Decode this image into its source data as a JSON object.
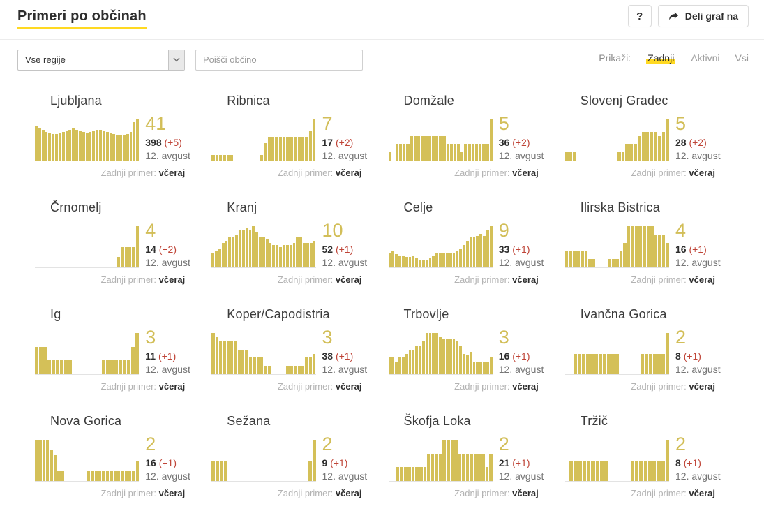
{
  "page": {
    "title": "Primeri po občinah"
  },
  "header": {
    "help_button": "?",
    "share_button": "Deli graf na",
    "share_icon": "share-forward-arrow"
  },
  "filters": {
    "region_select_value": "Vse regije",
    "region_select_icon": "chevron-down-icon",
    "search_placeholder": "Poišči občino",
    "display_label": "Prikaži:",
    "display_options": [
      {
        "label": "Zadnji",
        "active": true
      },
      {
        "label": "Aktivni",
        "active": false
      },
      {
        "label": "Vsi",
        "active": false
      }
    ]
  },
  "card_footer": {
    "label": "Zadnji primer:",
    "value": "včeraj"
  },
  "colors": {
    "accent_yellow": "#ffd922",
    "bar_yellow": "#d4c058",
    "delta_red": "#bf4437",
    "text_dark": "#2e2e2e",
    "text_gray": "#757575"
  },
  "chart_data": {
    "type": "bar",
    "note": "per-municipality daily case sparklines; see municipalities[].bars (relative daily values, last ~30 days ending 12. avgust)"
  },
  "municipalities": [
    {
      "name": "Ljubljana",
      "last": "41",
      "total": "398",
      "delta": "(+5)",
      "date": "12. avgust",
      "bars": [
        8.5,
        8,
        7.5,
        7,
        6.8,
        6.5,
        6.5,
        6.8,
        7,
        7.2,
        7.5,
        7.8,
        7.5,
        7.2,
        7,
        6.8,
        7,
        7.2,
        7.5,
        7.5,
        7.2,
        7,
        6.8,
        6.5,
        6.3,
        6.2,
        6.3,
        6.5,
        7,
        9.3,
        10
      ]
    },
    {
      "name": "Ribnica",
      "last": "7",
      "total": "17",
      "delta": "(+2)",
      "date": "12. avgust",
      "bars": [
        1,
        1,
        1,
        1,
        1,
        1,
        0,
        0,
        0,
        0,
        0,
        0,
        0,
        1,
        3,
        4,
        4,
        4,
        4,
        4,
        4,
        4,
        4,
        4,
        4,
        4,
        5,
        7
      ]
    },
    {
      "name": "Domžale",
      "last": "5",
      "total": "36",
      "delta": "(+2)",
      "date": "12. avgust",
      "bars": [
        1,
        0,
        2,
        2,
        2,
        2,
        3,
        3,
        3,
        3,
        3,
        3,
        3,
        3,
        3,
        3,
        2,
        2,
        2,
        2,
        1,
        2,
        2,
        2,
        2,
        2,
        2,
        2,
        5
      ]
    },
    {
      "name": "Slovenj Gradec",
      "last": "5",
      "total": "28",
      "delta": "(+2)",
      "date": "12. avgust",
      "bars": [
        1,
        1,
        1,
        0,
        0,
        0,
        0,
        0,
        0,
        0,
        0,
        0,
        0,
        1,
        1,
        2,
        2,
        2,
        3,
        3.5,
        3.5,
        3.5,
        3.5,
        3,
        3.5,
        5
      ]
    },
    {
      "name": "Črnomelj",
      "last": "4",
      "total": "14",
      "delta": "(+2)",
      "date": "12. avgust",
      "bars": [
        0,
        0,
        0,
        0,
        0,
        0,
        0,
        0,
        0,
        0,
        0,
        0,
        0,
        0,
        0,
        0,
        0,
        0,
        0,
        0,
        0,
        0,
        1,
        2,
        2,
        2,
        2,
        4
      ]
    },
    {
      "name": "Kranj",
      "last": "10",
      "total": "52",
      "delta": "(+1)",
      "date": "12. avgust",
      "bars": [
        3.5,
        4,
        4.5,
        6,
        6.5,
        7.5,
        7.5,
        8,
        9,
        9,
        9.5,
        9,
        10,
        8.5,
        7.5,
        7.5,
        7,
        6,
        5.5,
        5.5,
        5,
        5.5,
        5.5,
        5.5,
        6,
        7.5,
        7.5,
        6,
        6,
        6,
        6.5
      ]
    },
    {
      "name": "Celje",
      "last": "9",
      "total": "33",
      "delta": "(+1)",
      "date": "12. avgust",
      "bars": [
        2,
        2.2,
        1.8,
        1.5,
        1.5,
        1.4,
        1.4,
        1.5,
        1.3,
        1,
        1,
        1,
        1.2,
        1.5,
        2,
        2,
        2,
        2,
        2,
        2,
        2.2,
        2.5,
        3,
        3.5,
        4,
        4,
        4.2,
        4.5,
        4.2,
        5,
        5.5
      ]
    },
    {
      "name": "Ilirska Bistrica",
      "last": "4",
      "total": "16",
      "delta": "(+1)",
      "date": "12. avgust",
      "bars": [
        2,
        2,
        2,
        2,
        2,
        2,
        1,
        1,
        0,
        0,
        0,
        1,
        1,
        1,
        2,
        3,
        5,
        5,
        5,
        5,
        5,
        5,
        5,
        4,
        4,
        4,
        3
      ]
    },
    {
      "name": "Ig",
      "last": "3",
      "total": "11",
      "delta": "(+1)",
      "date": "12. avgust",
      "bars": [
        2,
        2,
        2,
        1,
        1,
        1,
        1,
        1,
        1,
        0,
        0,
        0,
        0,
        0,
        0,
        0,
        1,
        1,
        1,
        1,
        1,
        1,
        1,
        2,
        3
      ]
    },
    {
      "name": "Koper/Capodistria",
      "last": "3",
      "total": "38",
      "delta": "(+1)",
      "date": "12. avgust",
      "bars": [
        5,
        4.5,
        4,
        4,
        4,
        4,
        4,
        3,
        3,
        3,
        2,
        2,
        2,
        2,
        1,
        1,
        0,
        0,
        0,
        0,
        1,
        1,
        1,
        1,
        1,
        2,
        2,
        2.5
      ]
    },
    {
      "name": "Trbovlje",
      "last": "3",
      "total": "16",
      "delta": "(+1)",
      "date": "12. avgust",
      "bars": [
        4,
        4,
        3,
        4,
        4,
        5,
        6,
        6,
        7,
        7,
        8,
        10,
        10,
        10,
        10,
        9,
        8.5,
        8.5,
        8.5,
        8.5,
        8,
        7,
        5,
        4.5,
        5.5,
        3,
        3,
        3,
        3,
        3,
        4
      ]
    },
    {
      "name": "Ivančna Gorica",
      "last": "2",
      "total": "8",
      "delta": "(+1)",
      "date": "12. avgust",
      "bars": [
        0,
        0,
        1,
        1,
        1,
        1,
        1,
        1,
        1,
        1,
        1,
        1,
        1,
        0,
        0,
        0,
        0,
        0,
        1,
        1,
        1,
        1,
        1,
        1,
        2
      ]
    },
    {
      "name": "Nova Gorica",
      "last": "2",
      "total": "16",
      "delta": "(+1)",
      "date": "12. avgust",
      "bars": [
        4,
        4,
        4,
        4,
        3,
        2.5,
        1,
        1,
        0,
        0,
        0,
        0,
        0,
        0,
        1,
        1,
        1,
        1,
        1,
        1,
        1,
        1,
        1,
        1,
        1,
        1,
        1,
        2
      ]
    },
    {
      "name": "Sežana",
      "last": "2",
      "total": "9",
      "delta": "(+1)",
      "date": "12. avgust",
      "bars": [
        1,
        1,
        1,
        1,
        0,
        0,
        0,
        0,
        0,
        0,
        0,
        0,
        0,
        0,
        0,
        0,
        0,
        0,
        0,
        0,
        0,
        0,
        0,
        1,
        2
      ]
    },
    {
      "name": "Škofja Loka",
      "last": "2",
      "total": "21",
      "delta": "(+1)",
      "date": "12. avgust",
      "bars": [
        0,
        0,
        1,
        1,
        1,
        1,
        1,
        1,
        1,
        1,
        2,
        2,
        2,
        2,
        3,
        3,
        3,
        3,
        2,
        2,
        2,
        2,
        2,
        2,
        2,
        1,
        2
      ]
    },
    {
      "name": "Tržič",
      "last": "2",
      "total": "8",
      "delta": "(+1)",
      "date": "12. avgust",
      "bars": [
        0,
        1,
        1,
        1,
        1,
        1,
        1,
        1,
        1,
        1,
        0,
        0,
        0,
        0,
        0,
        1,
        1,
        1,
        1,
        1,
        1,
        1,
        1,
        2
      ]
    }
  ]
}
